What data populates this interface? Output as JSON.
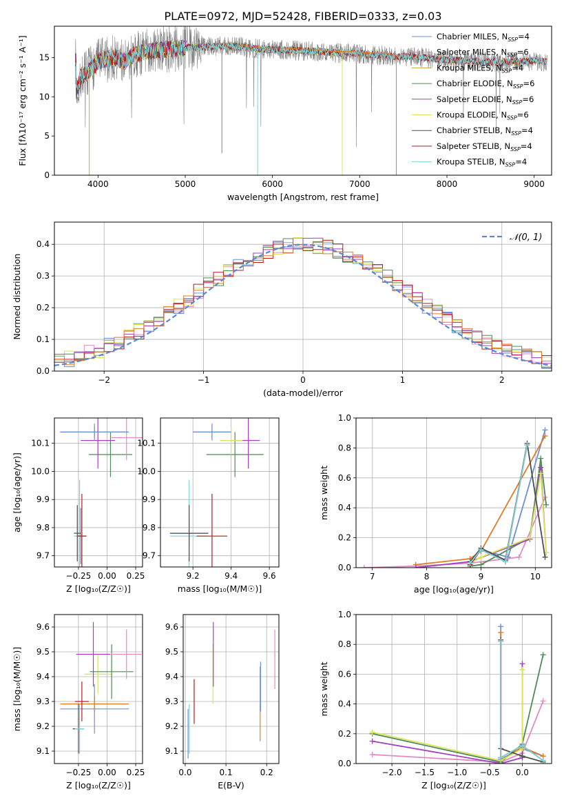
{
  "suptitle": "PLATE=0972, MJD=52428, FIBERID=0333, z=0.03",
  "colors": {
    "Chabrier MILES": "#6a8fd6",
    "Salpeter MILES": "#e28ac4",
    "Kroupa MILES": "#c9a53a",
    "Chabrier ELODIE": "#4f8a55",
    "Salpeter ELODIE": "#a33fbf",
    "Kroupa ELODIE": "#d8e65a",
    "Chabrier STELIB": "#4d4d4d",
    "Salpeter STELIB": "#b51a1a",
    "Kroupa STELIB": "#7ed3d6",
    "spectrum": "#808080",
    "orange": "#e07b24",
    "gaussian": "#5b86d6"
  },
  "chart_data": [
    {
      "id": "spectrum",
      "type": "line",
      "xlabel": "wavelength [Angstrom, rest frame]",
      "ylabel": "Flux [fλ10⁻¹⁷ erg cm⁻² s⁻¹ A⁻¹]",
      "xlim": [
        3500,
        9200
      ],
      "ylim": [
        0,
        19
      ],
      "xticks": [
        "4000",
        "5000",
        "6000",
        "7000",
        "8000",
        "9000"
      ],
      "yticks": [
        "0",
        "5",
        "10",
        "15"
      ],
      "legend": [
        {
          "label": "Chabrier MILES, N_SSP=4",
          "color_key": "Chabrier MILES"
        },
        {
          "label": "Salpeter MILES, N_SSP=6",
          "color_key": "Salpeter MILES"
        },
        {
          "label": "Kroupa MILES, N_SSP=4",
          "color_key": "Kroupa MILES"
        },
        {
          "label": "Chabrier ELODIE, N_SSP=6",
          "color_key": "Chabrier ELODIE"
        },
        {
          "label": "Salpeter ELODIE, N_SSP=6",
          "color_key": "Salpeter ELODIE"
        },
        {
          "label": "Kroupa ELODIE, N_SSP=6",
          "color_key": "Kroupa ELODIE"
        },
        {
          "label": "Chabrier STELIB, N_SSP=4",
          "color_key": "Chabrier STELIB"
        },
        {
          "label": "Salpeter STELIB, N_SSP=4",
          "color_key": "Salpeter STELIB"
        },
        {
          "label": "Kroupa STELIB, N_SSP=4",
          "color_key": "Kroupa STELIB"
        }
      ],
      "legend_position": "upper-right",
      "grid": false,
      "model_curve": {
        "x": [
          3750,
          3800,
          3900,
          4000,
          4100,
          4200,
          4300,
          4400,
          4500,
          4700,
          4900,
          5100,
          5300,
          5500,
          5700,
          5900,
          6100,
          6300,
          6500,
          6700,
          6900,
          7100,
          7300,
          7420,
          7600,
          7800,
          8000,
          8200,
          8400,
          8600,
          8800,
          9000,
          9150
        ],
        "y": [
          10.5,
          12.5,
          13.3,
          14.5,
          14.8,
          15.0,
          14.5,
          15.3,
          15.6,
          16.0,
          16.2,
          16.3,
          16.4,
          16.5,
          16.3,
          16.0,
          16.0,
          15.9,
          15.8,
          15.6,
          15.6,
          15.4,
          15.3,
          15.1,
          15.2,
          14.9,
          14.7,
          14.6,
          14.5,
          14.4,
          14.5,
          14.6,
          14.5
        ]
      }
    },
    {
      "id": "residuals",
      "type": "histogram",
      "xlabel": "(data-model)/error",
      "ylabel": "Normed distribution",
      "xlim": [
        -2.5,
        2.5
      ],
      "ylim": [
        0,
        0.47
      ],
      "xticks": [
        "−2",
        "−1",
        "0",
        "1",
        "2"
      ],
      "yticks": [
        "0.0",
        "0.1",
        "0.2",
        "0.3",
        "0.4"
      ],
      "grid": true,
      "legend": [
        {
          "label": "𝒩(0, 1)",
          "color_key": "gaussian"
        }
      ],
      "legend_position": "upper-right",
      "bin_width": 0.1
    },
    {
      "id": "age-vs-Z",
      "type": "errorbar",
      "xlabel": "Z [log₁₀(Z/Z☉)]",
      "ylabel": "age  [log₁₀(age/yr)]",
      "xlim": [
        -0.46,
        0.31
      ],
      "ylim": [
        9.66,
        10.19
      ],
      "xticks": [
        "−0.25",
        "0.00",
        "0.25"
      ],
      "yticks": [
        "9.7",
        "9.8",
        "9.9",
        "10.0",
        "10.1"
      ],
      "grid": true,
      "points": [
        {
          "model": "Chabrier MILES",
          "x": -0.23,
          "xerr": 0.05,
          "y": 9.77,
          "yerr": 0.1
        },
        {
          "model": "Kroupa STELIB",
          "x": -0.24,
          "xerr": 0.05,
          "y": 9.77,
          "yerr": 0.2
        },
        {
          "model": "Salpeter STELIB",
          "x": -0.22,
          "xerr": 0.04,
          "y": 9.77,
          "yerr": 0.15
        },
        {
          "model": "Chabrier STELIB",
          "x": -0.26,
          "xerr": 0.03,
          "y": 9.78,
          "yerr": 0.1
        },
        {
          "model": "Chabrier ELODIE",
          "x": 0.03,
          "xerr": 0.19,
          "y": 10.06,
          "yerr": 0.08
        },
        {
          "model": "Salpeter ELODIE",
          "x": -0.08,
          "xerr": 0.15,
          "y": 10.11,
          "yerr": 0.1
        },
        {
          "model": "Salpeter MILES",
          "x": 0.17,
          "xerr": 0.14,
          "y": 10.12,
          "yerr": 0.08
        },
        {
          "model": "Kroupa MILES",
          "x": -0.11,
          "xerr": 0.3,
          "y": 10.14,
          "yerr": 0.02
        },
        {
          "model": "Chabrier MILES",
          "x": -0.11,
          "xerr": 0.3,
          "y": 10.14,
          "yerr": 0.03
        }
      ]
    },
    {
      "id": "age-vs-mass",
      "type": "errorbar",
      "xlabel": "mass [log₁₀(M/M☉)]",
      "ylabel": "",
      "xlim": [
        9.03,
        9.65
      ],
      "ylim": [
        9.66,
        10.19
      ],
      "xticks": [
        "9.2",
        "9.4",
        "9.6"
      ],
      "yticks": [
        "9.7",
        "9.8",
        "9.9",
        "10.0",
        "10.1"
      ],
      "grid": true,
      "points": [
        {
          "model": "Chabrier MILES",
          "x": 9.18,
          "xerr": 0.1,
          "y": 9.78,
          "yerr": 0.05
        },
        {
          "model": "Kroupa STELIB",
          "x": 9.18,
          "xerr": 0.1,
          "y": 9.77,
          "yerr": 0.2
        },
        {
          "model": "Salpeter STELIB",
          "x": 9.3,
          "xerr": 0.08,
          "y": 9.77,
          "yerr": 0.15
        },
        {
          "model": "Chabrier STELIB",
          "x": 9.18,
          "xerr": 0.1,
          "y": 9.78,
          "yerr": 0.1
        },
        {
          "model": "Chabrier ELODIE",
          "x": 9.42,
          "xerr": 0.15,
          "y": 10.06,
          "yerr": 0.08
        },
        {
          "model": "Salpeter ELODIE",
          "x": 9.49,
          "xerr": 0.06,
          "y": 10.11,
          "yerr": 0.1
        },
        {
          "model": "Kroupa ELODIE",
          "x": 9.4,
          "xerr": 0.06,
          "y": 10.11,
          "yerr": 0.05
        },
        {
          "model": "Kroupa MILES",
          "x": 9.3,
          "xerr": 0.1,
          "y": 10.14,
          "yerr": 0.02
        },
        {
          "model": "Chabrier MILES",
          "x": 9.3,
          "xerr": 0.1,
          "y": 10.14,
          "yerr": 0.03
        }
      ]
    },
    {
      "id": "weight-vs-age",
      "type": "line",
      "xlabel": "age  [log₁₀(age/yr)]",
      "ylabel": "mass weight",
      "xlim": [
        6.7,
        10.3
      ],
      "ylim": [
        0,
        1.0
      ],
      "xticks": [
        "7",
        "8",
        "9",
        "10"
      ],
      "yticks": [
        "0.0",
        "0.2",
        "0.4",
        "0.6",
        "0.8",
        "1.0"
      ],
      "grid": true,
      "series": [
        {
          "model": "Chabrier MILES",
          "x": [
            8.8,
            9.0,
            9.5,
            10.18
          ],
          "y": [
            0.02,
            0.12,
            0.07,
            0.92
          ]
        },
        {
          "model": "Salpeter MILES",
          "x": [
            6.85,
            7.8,
            8.8,
            9.7,
            10.18
          ],
          "y": [
            0.0,
            0.01,
            0.03,
            0.07,
            0.47
          ]
        },
        {
          "model": "Kroupa MILES",
          "x": [
            7.8,
            8.8,
            9.0,
            10.18
          ],
          "y": [
            0.02,
            0.06,
            0.11,
            0.88
          ]
        },
        {
          "model": "Chabrier ELODIE",
          "x": [
            8.8,
            9.0,
            9.9,
            10.1,
            10.2
          ],
          "y": [
            0.01,
            0.02,
            0.2,
            0.73,
            0.42
          ]
        },
        {
          "model": "Salpeter ELODIE",
          "x": [
            7.8,
            8.8,
            9.9,
            10.1,
            10.2
          ],
          "y": [
            0.0,
            0.04,
            0.19,
            0.67,
            0.1
          ]
        },
        {
          "model": "Kroupa ELODIE",
          "x": [
            8.8,
            9.0,
            9.9,
            10.1,
            10.2
          ],
          "y": [
            0.03,
            0.07,
            0.2,
            0.63,
            0.1
          ]
        },
        {
          "model": "Chabrier STELIB",
          "x": [
            8.8,
            9.0,
            9.45,
            9.85,
            10.18
          ],
          "y": [
            0.04,
            0.13,
            0.05,
            0.83,
            0.07
          ]
        },
        {
          "model": "Salpeter STELIB",
          "x": [
            8.8,
            9.0,
            9.45,
            9.85
          ],
          "y": [
            0.02,
            0.12,
            0.04,
            0.82
          ]
        },
        {
          "model": "Kroupa STELIB",
          "x": [
            8.8,
            9.0,
            9.45,
            9.85
          ],
          "y": [
            0.03,
            0.12,
            0.04,
            0.82
          ]
        }
      ]
    },
    {
      "id": "mass-vs-Z",
      "type": "errorbar",
      "xlabel": "Z [log₁₀(Z/Z☉)]",
      "ylabel": "mass [log₁₀(M/M☉)]",
      "xlim": [
        -0.46,
        0.31
      ],
      "ylim": [
        9.05,
        9.65
      ],
      "xticks": [
        "−0.25",
        "0.00",
        "0.25"
      ],
      "yticks": [
        "9.1",
        "9.2",
        "9.3",
        "9.4",
        "9.5",
        "9.6"
      ],
      "grid": true,
      "points": [
        {
          "model": "Chabrier MILES",
          "x": -0.11,
          "xerr": 0.3,
          "y": 9.27,
          "yerr": 0.1
        },
        {
          "model": "Kroupa MILES",
          "x": -0.11,
          "xerr": 0.3,
          "y": 9.29,
          "yerr": 0.03
        },
        {
          "model": "Salpeter STELIB",
          "x": -0.22,
          "xerr": 0.06,
          "y": 9.3,
          "yerr": 0.08
        },
        {
          "model": "Chabrier STELIB",
          "x": -0.25,
          "xerr": 0.05,
          "y": 9.19,
          "yerr": 0.1
        },
        {
          "model": "Kroupa STELIB",
          "x": -0.24,
          "xerr": 0.04,
          "y": 9.19,
          "yerr": 0.1
        },
        {
          "model": "Kroupa ELODIE",
          "x": -0.08,
          "xerr": 0.12,
          "y": 9.41,
          "yerr": 0.08
        },
        {
          "model": "Chabrier ELODIE",
          "x": 0.04,
          "xerr": 0.19,
          "y": 9.42,
          "yerr": 0.11
        },
        {
          "model": "Salpeter ELODIE",
          "x": -0.12,
          "xerr": 0.15,
          "y": 9.49,
          "yerr": 0.13
        },
        {
          "model": "Salpeter MILES",
          "x": 0.17,
          "xerr": 0.13,
          "y": 9.49,
          "yerr": 0.1
        }
      ]
    },
    {
      "id": "mass-vs-ebv",
      "type": "errorbar",
      "xlabel": "E(B-V)",
      "ylabel": "",
      "xlim": [
        -0.005,
        0.23
      ],
      "ylim": [
        9.05,
        9.65
      ],
      "xticks": [
        "0.0",
        "0.1",
        "0.2"
      ],
      "yticks": [
        "9.1",
        "9.2",
        "9.3",
        "9.4",
        "9.5",
        "9.6"
      ],
      "grid": true,
      "points": [
        {
          "model": "Chabrier MILES",
          "x": 0.007,
          "xerr": 0,
          "y": 9.17,
          "yerr": 0.1
        },
        {
          "model": "Kroupa STELIB",
          "x": 0.01,
          "xerr": 0,
          "y": 9.19,
          "yerr": 0.1
        },
        {
          "model": "Salpeter STELIB",
          "x": 0.022,
          "xerr": 0,
          "y": 9.3,
          "yerr": 0.09
        },
        {
          "model": "Kroupa ELODIE",
          "x": 0.068,
          "xerr": 0,
          "y": 9.41,
          "yerr": 0.12
        },
        {
          "model": "Salpeter ELODIE",
          "x": 0.069,
          "xerr": 0,
          "y": 9.49,
          "yerr": 0.13
        },
        {
          "model": "Kroupa MILES",
          "x": 0.184,
          "xerr": 0,
          "y": 9.29,
          "yerr": 0.15
        },
        {
          "model": "Chabrier MILES",
          "x": 0.185,
          "xerr": 0,
          "y": 9.36,
          "yerr": 0.1
        },
        {
          "model": "Salpeter MILES",
          "x": 0.22,
          "xerr": 0,
          "y": 9.47,
          "yerr": 0.12
        }
      ]
    },
    {
      "id": "weight-vs-Z",
      "type": "line",
      "xlabel": "Z [log₁₀(Z/Z☉)]",
      "ylabel": "mass weight",
      "xlim": [
        -2.55,
        0.45
      ],
      "ylim": [
        0,
        1.0
      ],
      "xticks": [
        "−2.0",
        "−1.5",
        "−1.0",
        "−0.5",
        "0.0"
      ],
      "yticks": [
        "0.0",
        "0.2",
        "0.4",
        "0.6",
        "0.8",
        "1.0"
      ],
      "grid": true,
      "series": [
        {
          "model": "Chabrier MILES",
          "x": [
            -0.33,
            -0.33,
            0.0,
            0.32
          ],
          "y": [
            0.92,
            0.03,
            0.1,
            0.05
          ]
        },
        {
          "model": "Salpeter MILES",
          "x": [
            -2.3,
            -0.33,
            0.0,
            0.32
          ],
          "y": [
            0.06,
            0.01,
            0.07,
            0.42
          ]
        },
        {
          "model": "Kroupa MILES",
          "x": [
            -0.33,
            -0.33,
            0.0,
            0.32
          ],
          "y": [
            0.88,
            0.02,
            0.11,
            0.05
          ]
        },
        {
          "model": "Chabrier ELODIE",
          "x": [
            -2.3,
            -0.33,
            0.0,
            0.32
          ],
          "y": [
            0.2,
            0.01,
            0.13,
            0.73
          ]
        },
        {
          "model": "Salpeter ELODIE",
          "x": [
            -2.3,
            -0.33,
            0.0,
            0.0
          ],
          "y": [
            0.15,
            0.0,
            0.04,
            0.67
          ]
        },
        {
          "model": "Kroupa ELODIE",
          "x": [
            -2.3,
            -0.33,
            0.0,
            0.0
          ],
          "y": [
            0.21,
            0.02,
            0.1,
            0.63
          ]
        },
        {
          "model": "Chabrier STELIB",
          "x": [
            -0.33,
            -0.33,
            0.0,
            0.32
          ],
          "y": [
            0.83,
            0.1,
            0.05,
            0.01
          ]
        },
        {
          "model": "Salpeter STELIB",
          "x": [
            -0.33,
            -0.33,
            0.0,
            0.32
          ],
          "y": [
            0.82,
            0.04,
            0.12,
            0.02
          ]
        },
        {
          "model": "Kroupa STELIB",
          "x": [
            -0.33,
            -0.33,
            0.0,
            0.32
          ],
          "y": [
            0.82,
            0.04,
            0.12,
            0.02
          ]
        }
      ]
    }
  ]
}
